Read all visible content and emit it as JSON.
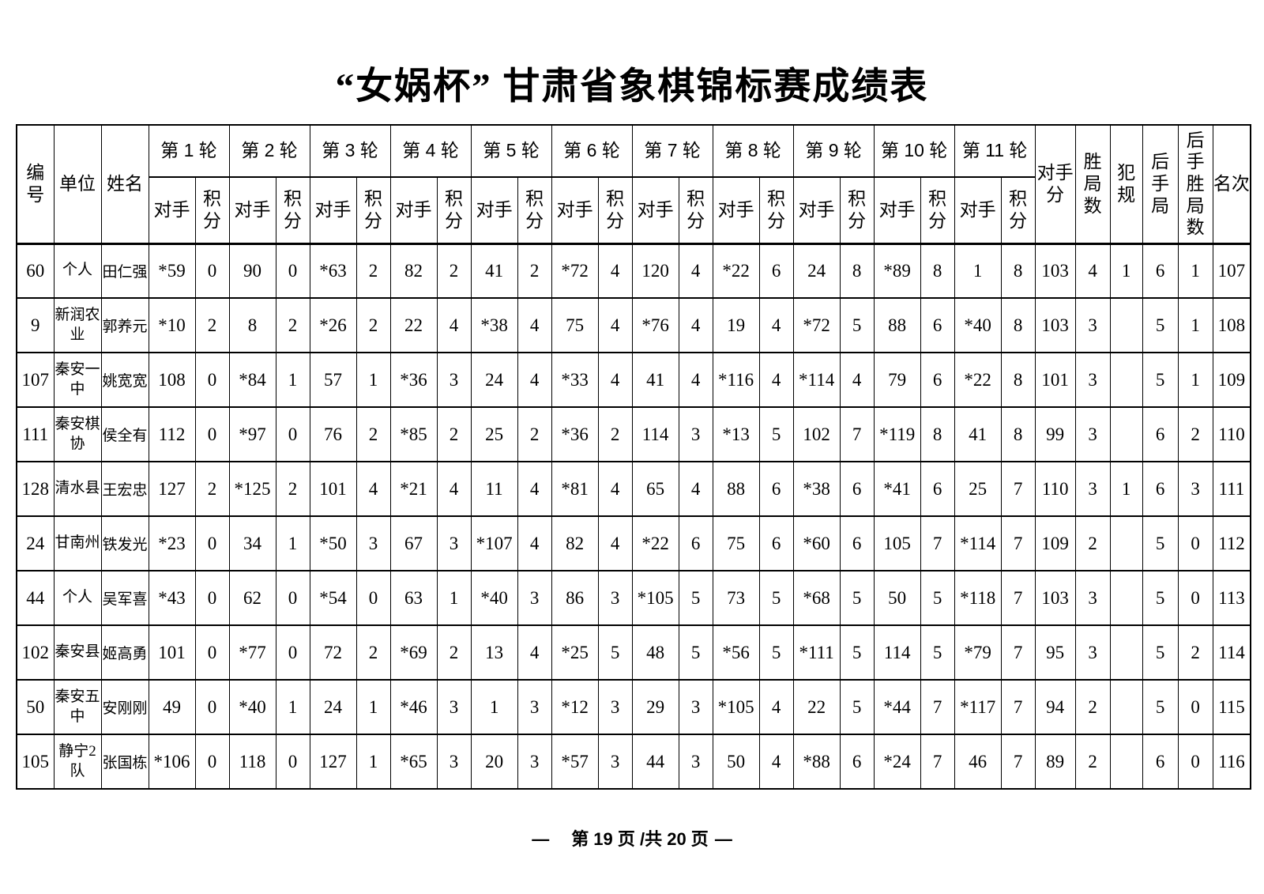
{
  "title": "“女娲杯” 甘肃省象棋锦标赛成绩表",
  "colors": {
    "text": "#000000",
    "background": "#ffffff",
    "border": "#000000"
  },
  "header": {
    "col_no": "编号",
    "col_unit": "单位",
    "col_name": "姓名",
    "rounds": [
      "第 1 轮",
      "第 2 轮",
      "第 3 轮",
      "第 4 轮",
      "第 5 轮",
      "第 6 轮",
      "第 7 轮",
      "第 8 轮",
      "第 9 轮",
      "第 10 轮",
      "第 11 轮"
    ],
    "sub_opponent": "对手",
    "sub_score": "积分",
    "col_opp_score": "对手分",
    "col_wins": "胜局数",
    "col_fouls": "犯规",
    "col_second_games": "后手局",
    "col_second_wins": "后手胜局数",
    "col_rank": "名次"
  },
  "rows": [
    {
      "no": "60",
      "unit": "个人",
      "name": "田仁强",
      "rounds": [
        [
          "*59",
          "0"
        ],
        [
          "90",
          "0"
        ],
        [
          "*63",
          "2"
        ],
        [
          "82",
          "2"
        ],
        [
          "41",
          "2"
        ],
        [
          "*72",
          "4"
        ],
        [
          "120",
          "4"
        ],
        [
          "*22",
          "6"
        ],
        [
          "24",
          "8"
        ],
        [
          "*89",
          "8"
        ],
        [
          "1",
          "8"
        ]
      ],
      "opp_score": "103",
      "wins": "4",
      "fouls": "1",
      "second_games": "6",
      "second_wins": "1",
      "rank": "107"
    },
    {
      "no": "9",
      "unit": "新润农业",
      "name": "郭养元",
      "rounds": [
        [
          "*10",
          "2"
        ],
        [
          "8",
          "2"
        ],
        [
          "*26",
          "2"
        ],
        [
          "22",
          "4"
        ],
        [
          "*38",
          "4"
        ],
        [
          "75",
          "4"
        ],
        [
          "*76",
          "4"
        ],
        [
          "19",
          "4"
        ],
        [
          "*72",
          "5"
        ],
        [
          "88",
          "6"
        ],
        [
          "*40",
          "8"
        ]
      ],
      "opp_score": "103",
      "wins": "3",
      "fouls": "",
      "second_games": "5",
      "second_wins": "1",
      "rank": "108"
    },
    {
      "no": "107",
      "unit": "秦安一中",
      "name": "姚宽宽",
      "rounds": [
        [
          "108",
          "0"
        ],
        [
          "*84",
          "1"
        ],
        [
          "57",
          "1"
        ],
        [
          "*36",
          "3"
        ],
        [
          "24",
          "4"
        ],
        [
          "*33",
          "4"
        ],
        [
          "41",
          "4"
        ],
        [
          "*116",
          "4"
        ],
        [
          "*114",
          "4"
        ],
        [
          "79",
          "6"
        ],
        [
          "*22",
          "8"
        ]
      ],
      "opp_score": "101",
      "wins": "3",
      "fouls": "",
      "second_games": "5",
      "second_wins": "1",
      "rank": "109"
    },
    {
      "no": "111",
      "unit": "秦安棋协",
      "name": "侯全有",
      "rounds": [
        [
          "112",
          "0"
        ],
        [
          "*97",
          "0"
        ],
        [
          "76",
          "2"
        ],
        [
          "*85",
          "2"
        ],
        [
          "25",
          "2"
        ],
        [
          "*36",
          "2"
        ],
        [
          "114",
          "3"
        ],
        [
          "*13",
          "5"
        ],
        [
          "102",
          "7"
        ],
        [
          "*119",
          "8"
        ],
        [
          "41",
          "8"
        ]
      ],
      "opp_score": "99",
      "wins": "3",
      "fouls": "",
      "second_games": "6",
      "second_wins": "2",
      "rank": "110"
    },
    {
      "no": "128",
      "unit": "清水县",
      "name": "王宏忠",
      "rounds": [
        [
          "127",
          "2"
        ],
        [
          "*125",
          "2"
        ],
        [
          "101",
          "4"
        ],
        [
          "*21",
          "4"
        ],
        [
          "11",
          "4"
        ],
        [
          "*81",
          "4"
        ],
        [
          "65",
          "4"
        ],
        [
          "88",
          "6"
        ],
        [
          "*38",
          "6"
        ],
        [
          "*41",
          "6"
        ],
        [
          "25",
          "7"
        ]
      ],
      "opp_score": "110",
      "wins": "3",
      "fouls": "1",
      "second_games": "6",
      "second_wins": "3",
      "rank": "111"
    },
    {
      "no": "24",
      "unit": "甘南州",
      "name": "铁发光",
      "rounds": [
        [
          "*23",
          "0"
        ],
        [
          "34",
          "1"
        ],
        [
          "*50",
          "3"
        ],
        [
          "67",
          "3"
        ],
        [
          "*107",
          "4"
        ],
        [
          "82",
          "4"
        ],
        [
          "*22",
          "6"
        ],
        [
          "75",
          "6"
        ],
        [
          "*60",
          "6"
        ],
        [
          "105",
          "7"
        ],
        [
          "*114",
          "7"
        ]
      ],
      "opp_score": "109",
      "wins": "2",
      "fouls": "",
      "second_games": "5",
      "second_wins": "0",
      "rank": "112"
    },
    {
      "no": "44",
      "unit": "个人",
      "name": "吴军喜",
      "rounds": [
        [
          "*43",
          "0"
        ],
        [
          "62",
          "0"
        ],
        [
          "*54",
          "0"
        ],
        [
          "63",
          "1"
        ],
        [
          "*40",
          "3"
        ],
        [
          "86",
          "3"
        ],
        [
          "*105",
          "5"
        ],
        [
          "73",
          "5"
        ],
        [
          "*68",
          "5"
        ],
        [
          "50",
          "5"
        ],
        [
          "*118",
          "7"
        ]
      ],
      "opp_score": "103",
      "wins": "3",
      "fouls": "",
      "second_games": "5",
      "second_wins": "0",
      "rank": "113"
    },
    {
      "no": "102",
      "unit": "秦安县",
      "name": "姬高勇",
      "rounds": [
        [
          "101",
          "0"
        ],
        [
          "*77",
          "0"
        ],
        [
          "72",
          "2"
        ],
        [
          "*69",
          "2"
        ],
        [
          "13",
          "4"
        ],
        [
          "*25",
          "5"
        ],
        [
          "48",
          "5"
        ],
        [
          "*56",
          "5"
        ],
        [
          "*111",
          "5"
        ],
        [
          "114",
          "5"
        ],
        [
          "*79",
          "7"
        ]
      ],
      "opp_score": "95",
      "wins": "3",
      "fouls": "",
      "second_games": "5",
      "second_wins": "2",
      "rank": "114"
    },
    {
      "no": "50",
      "unit": "秦安五中",
      "name": "安刚刚",
      "rounds": [
        [
          "49",
          "0"
        ],
        [
          "*40",
          "1"
        ],
        [
          "24",
          "1"
        ],
        [
          "*46",
          "3"
        ],
        [
          "1",
          "3"
        ],
        [
          "*12",
          "3"
        ],
        [
          "29",
          "3"
        ],
        [
          "*105",
          "4"
        ],
        [
          "22",
          "5"
        ],
        [
          "*44",
          "7"
        ],
        [
          "*117",
          "7"
        ]
      ],
      "opp_score": "94",
      "wins": "2",
      "fouls": "",
      "second_games": "5",
      "second_wins": "0",
      "rank": "115"
    },
    {
      "no": "105",
      "unit": "静宁2队",
      "name": "张国栋",
      "rounds": [
        [
          "*106",
          "0"
        ],
        [
          "118",
          "0"
        ],
        [
          "127",
          "1"
        ],
        [
          "*65",
          "3"
        ],
        [
          "20",
          "3"
        ],
        [
          "*57",
          "3"
        ],
        [
          "44",
          "3"
        ],
        [
          "50",
          "4"
        ],
        [
          "*88",
          "6"
        ],
        [
          "*24",
          "7"
        ],
        [
          "46",
          "7"
        ]
      ],
      "opp_score": "89",
      "wins": "2",
      "fouls": "",
      "second_games": "6",
      "second_wins": "0",
      "rank": "116"
    }
  ],
  "footer": {
    "dash_left": "—",
    "page_text": "第 19 页 /共 20 页",
    "dash_right": "—"
  }
}
